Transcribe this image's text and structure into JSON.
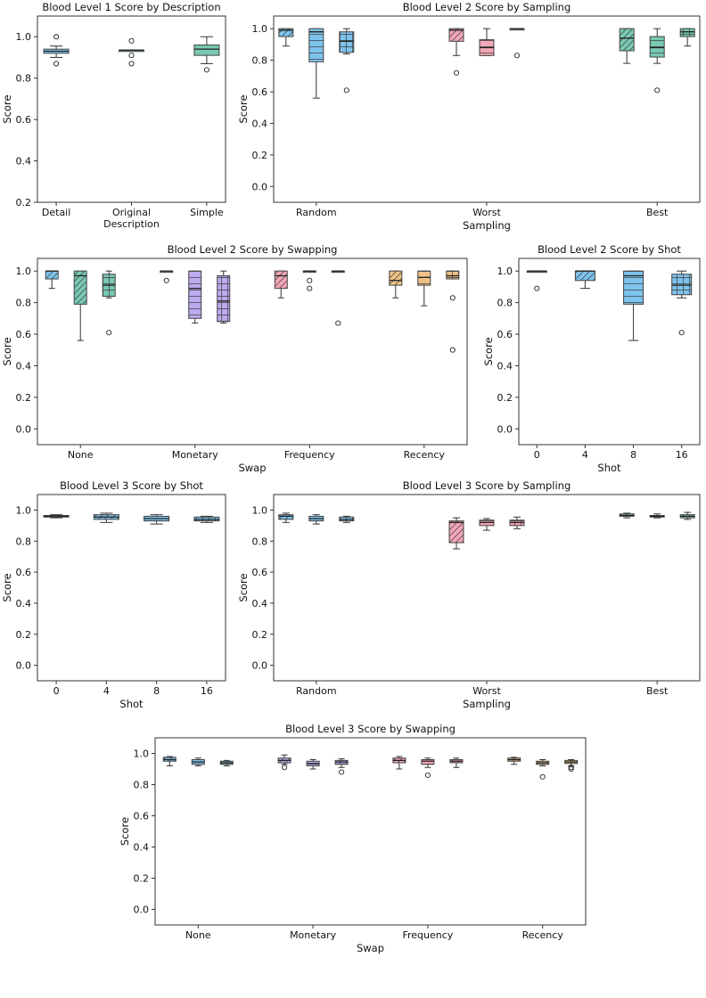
{
  "colors": {
    "blue": "#7ec3ec",
    "pink": "#f3a6b6",
    "teal": "#79c9b3",
    "purple": "#bca9ee",
    "orange": "#eec186",
    "median": "#222222",
    "frame": "#333333"
  },
  "chart_data": [
    {
      "id": "p1",
      "type": "box",
      "title": "Blood Level 1 Score by Description",
      "xlabel": "",
      "ylabel": "Score",
      "ylim": [
        0.2,
        1.1
      ],
      "yticks": [
        0.2,
        0.4,
        0.6,
        0.8,
        1.0
      ],
      "yticklabels": [
        "0.2",
        "0.4",
        "0.6",
        "0.8",
        "1.0"
      ],
      "groups": [
        {
          "label": "Detail",
          "boxes": [
            {
              "q1": 0.92,
              "median": 0.93,
              "q3": 0.94,
              "whislo": 0.9,
              "whishi": 0.955,
              "fliers": [
                0.87,
                1.0
              ],
              "color": "blue",
              "hatch": "none"
            }
          ]
        },
        {
          "label": "Original\nDescription",
          "boxes": [
            {
              "q1": 0.93,
              "median": 0.935,
              "q3": 0.935,
              "whislo": 0.93,
              "whishi": 0.935,
              "fliers": [
                0.98,
                0.91,
                0.87
              ],
              "color": "blue",
              "hatch": "none"
            }
          ]
        },
        {
          "label": "Simple",
          "boxes": [
            {
              "q1": 0.91,
              "median": 0.94,
              "q3": 0.96,
              "whislo": 0.87,
              "whishi": 1.0,
              "fliers": [
                0.84
              ],
              "color": "teal",
              "hatch": "none"
            }
          ]
        }
      ]
    },
    {
      "id": "p2",
      "type": "box",
      "title": "Blood Level 2 Score by Sampling",
      "xlabel": "Sampling",
      "ylabel": "Score",
      "ylim": [
        -0.1,
        1.08
      ],
      "yticks": [
        0.0,
        0.2,
        0.4,
        0.6,
        0.8,
        1.0
      ],
      "yticklabels": [
        "0.0",
        "0.2",
        "0.4",
        "0.6",
        "0.8",
        "1.0"
      ],
      "groups": [
        {
          "label": "Random",
          "boxes": [
            {
              "q1": 0.95,
              "median": 0.99,
              "q3": 1.0,
              "whislo": 0.89,
              "whishi": 1.0,
              "fliers": [],
              "color": "blue",
              "hatch": "diag"
            },
            {
              "q1": 0.79,
              "median": 0.98,
              "q3": 1.0,
              "whislo": 0.56,
              "whishi": 1.0,
              "fliers": [],
              "color": "blue",
              "hatch": "horiz"
            },
            {
              "q1": 0.85,
              "median": 0.92,
              "q3": 0.98,
              "whislo": 0.84,
              "whishi": 1.0,
              "fliers": [
                0.61
              ],
              "color": "blue",
              "hatch": "grid"
            }
          ]
        },
        {
          "label": "Worst",
          "boxes": [
            {
              "q1": 0.92,
              "median": 0.99,
              "q3": 1.0,
              "whislo": 0.83,
              "whishi": 1.0,
              "fliers": [
                0.72
              ],
              "color": "pink",
              "hatch": "diag"
            },
            {
              "q1": 0.83,
              "median": 0.88,
              "q3": 0.93,
              "whislo": 0.83,
              "whishi": 1.0,
              "fliers": [],
              "color": "pink",
              "hatch": "horiz"
            },
            {
              "q1": 1.0,
              "median": 1.0,
              "q3": 1.0,
              "whislo": 1.0,
              "whishi": 1.0,
              "fliers": [
                0.83
              ],
              "color": "pink",
              "hatch": "grid"
            }
          ]
        },
        {
          "label": "Best",
          "boxes": [
            {
              "q1": 0.86,
              "median": 0.94,
              "q3": 1.0,
              "whislo": 0.78,
              "whishi": 1.0,
              "fliers": [],
              "color": "teal",
              "hatch": "diag"
            },
            {
              "q1": 0.82,
              "median": 0.88,
              "q3": 0.95,
              "whislo": 0.78,
              "whishi": 1.0,
              "fliers": [
                0.61
              ],
              "color": "teal",
              "hatch": "horiz"
            },
            {
              "q1": 0.95,
              "median": 0.98,
              "q3": 1.0,
              "whislo": 0.89,
              "whishi": 1.0,
              "fliers": [],
              "color": "teal",
              "hatch": "grid"
            }
          ]
        }
      ]
    },
    {
      "id": "p3",
      "type": "box",
      "title": "Blood Level 2 Score by Swapping",
      "xlabel": "Swap",
      "ylabel": "Score",
      "ylim": [
        -0.1,
        1.08
      ],
      "yticks": [
        0.0,
        0.2,
        0.4,
        0.6,
        0.8,
        1.0
      ],
      "yticklabels": [
        "0.0",
        "0.2",
        "0.4",
        "0.6",
        "0.8",
        "1.0"
      ],
      "groups": [
        {
          "label": "None",
          "boxes": [
            {
              "q1": 0.95,
              "median": 1.0,
              "q3": 1.0,
              "whislo": 0.89,
              "whishi": 1.0,
              "fliers": [],
              "color": "blue",
              "hatch": "diag"
            },
            {
              "q1": 0.79,
              "median": 0.97,
              "q3": 1.0,
              "whislo": 0.56,
              "whishi": 1.0,
              "fliers": [],
              "color": "teal",
              "hatch": "diag"
            },
            {
              "q1": 0.84,
              "median": 0.91,
              "q3": 0.98,
              "whislo": 0.83,
              "whishi": 1.0,
              "fliers": [
                0.61
              ],
              "color": "teal",
              "hatch": "grid"
            }
          ]
        },
        {
          "label": "Monetary",
          "boxes": [
            {
              "q1": 1.0,
              "median": 1.0,
              "q3": 1.0,
              "whislo": 1.0,
              "whishi": 1.0,
              "fliers": [
                0.94
              ],
              "color": "purple",
              "hatch": "diag"
            },
            {
              "q1": 0.7,
              "median": 0.89,
              "q3": 1.0,
              "whislo": 0.67,
              "whishi": 1.0,
              "fliers": [],
              "color": "purple",
              "hatch": "horiz"
            },
            {
              "q1": 0.68,
              "median": 0.81,
              "q3": 0.97,
              "whislo": 0.67,
              "whishi": 1.0,
              "fliers": [],
              "color": "purple",
              "hatch": "grid"
            }
          ]
        },
        {
          "label": "Frequency",
          "boxes": [
            {
              "q1": 0.89,
              "median": 0.97,
              "q3": 1.0,
              "whislo": 0.83,
              "whishi": 1.0,
              "fliers": [],
              "color": "pink",
              "hatch": "diag"
            },
            {
              "q1": 1.0,
              "median": 1.0,
              "q3": 1.0,
              "whislo": 1.0,
              "whishi": 1.0,
              "fliers": [
                0.94,
                0.89
              ],
              "color": "pink",
              "hatch": "horiz"
            },
            {
              "q1": 1.0,
              "median": 1.0,
              "q3": 1.0,
              "whislo": 1.0,
              "whishi": 1.0,
              "fliers": [
                0.67
              ],
              "color": "pink",
              "hatch": "grid"
            }
          ]
        },
        {
          "label": "Recency",
          "boxes": [
            {
              "q1": 0.91,
              "median": 0.94,
              "q3": 1.0,
              "whislo": 0.83,
              "whishi": 1.0,
              "fliers": [],
              "color": "orange",
              "hatch": "diag"
            },
            {
              "q1": 0.91,
              "median": 0.96,
              "q3": 1.0,
              "whislo": 0.78,
              "whishi": 1.0,
              "fliers": [],
              "color": "orange",
              "hatch": "horiz"
            },
            {
              "q1": 0.95,
              "median": 0.97,
              "q3": 1.0,
              "whislo": 0.95,
              "whishi": 1.0,
              "fliers": [
                0.83,
                0.5
              ],
              "color": "orange",
              "hatch": "grid"
            }
          ]
        }
      ]
    },
    {
      "id": "p4",
      "type": "box",
      "title": "Blood Level 2 Score by Shot",
      "xlabel": "Shot",
      "ylabel": "Score",
      "ylim": [
        -0.1,
        1.08
      ],
      "yticks": [
        0.0,
        0.2,
        0.4,
        0.6,
        0.8,
        1.0
      ],
      "yticklabels": [
        "0.0",
        "0.2",
        "0.4",
        "0.6",
        "0.8",
        "1.0"
      ],
      "groups": [
        {
          "label": "0",
          "boxes": [
            {
              "q1": 1.0,
              "median": 1.0,
              "q3": 1.0,
              "whislo": 1.0,
              "whishi": 1.0,
              "fliers": [
                0.89
              ],
              "color": "blue",
              "hatch": "none"
            }
          ]
        },
        {
          "label": "4",
          "boxes": [
            {
              "q1": 0.94,
              "median": 1.0,
              "q3": 1.0,
              "whislo": 0.89,
              "whishi": 1.0,
              "fliers": [],
              "color": "blue",
              "hatch": "diag"
            }
          ]
        },
        {
          "label": "8",
          "boxes": [
            {
              "q1": 0.79,
              "median": 0.97,
              "q3": 1.0,
              "whislo": 0.56,
              "whishi": 1.0,
              "fliers": [],
              "color": "blue",
              "hatch": "horiz"
            }
          ]
        },
        {
          "label": "16",
          "boxes": [
            {
              "q1": 0.85,
              "median": 0.91,
              "q3": 0.98,
              "whislo": 0.83,
              "whishi": 1.0,
              "fliers": [
                0.61
              ],
              "color": "blue",
              "hatch": "grid"
            }
          ]
        }
      ]
    },
    {
      "id": "p5",
      "type": "box",
      "title": "Blood Level 3 Score by Shot",
      "xlabel": "Shot",
      "ylabel": "Score",
      "ylim": [
        -0.1,
        1.1
      ],
      "yticks": [
        0.0,
        0.2,
        0.4,
        0.6,
        0.8,
        1.0
      ],
      "yticklabels": [
        "0.0",
        "0.2",
        "0.4",
        "0.6",
        "0.8",
        "1.0"
      ],
      "groups": [
        {
          "label": "0",
          "boxes": [
            {
              "q1": 0.955,
              "median": 0.96,
              "q3": 0.965,
              "whislo": 0.95,
              "whishi": 0.97,
              "fliers": [],
              "color": "blue",
              "hatch": "none"
            }
          ]
        },
        {
          "label": "4",
          "boxes": [
            {
              "q1": 0.94,
              "median": 0.955,
              "q3": 0.97,
              "whislo": 0.92,
              "whishi": 0.98,
              "fliers": [],
              "color": "blue",
              "hatch": "diag"
            }
          ]
        },
        {
          "label": "8",
          "boxes": [
            {
              "q1": 0.93,
              "median": 0.945,
              "q3": 0.96,
              "whislo": 0.91,
              "whishi": 0.97,
              "fliers": [],
              "color": "blue",
              "hatch": "horiz"
            }
          ]
        },
        {
          "label": "16",
          "boxes": [
            {
              "q1": 0.93,
              "median": 0.94,
              "q3": 0.955,
              "whislo": 0.92,
              "whishi": 0.96,
              "fliers": [],
              "color": "blue",
              "hatch": "grid"
            }
          ]
        }
      ]
    },
    {
      "id": "p6",
      "type": "box",
      "title": "Blood Level 3 Score by Sampling",
      "xlabel": "Sampling",
      "ylabel": "Score",
      "ylim": [
        -0.1,
        1.1
      ],
      "yticks": [
        0.0,
        0.2,
        0.4,
        0.6,
        0.8,
        1.0
      ],
      "yticklabels": [
        "0.0",
        "0.2",
        "0.4",
        "0.6",
        "0.8",
        "1.0"
      ],
      "groups": [
        {
          "label": "Random",
          "boxes": [
            {
              "q1": 0.94,
              "median": 0.96,
              "q3": 0.97,
              "whislo": 0.92,
              "whishi": 0.98,
              "fliers": [],
              "color": "blue",
              "hatch": "diag"
            },
            {
              "q1": 0.93,
              "median": 0.945,
              "q3": 0.96,
              "whislo": 0.91,
              "whishi": 0.97,
              "fliers": [],
              "color": "blue",
              "hatch": "horiz"
            },
            {
              "q1": 0.93,
              "median": 0.94,
              "q3": 0.955,
              "whislo": 0.92,
              "whishi": 0.96,
              "fliers": [],
              "color": "blue",
              "hatch": "grid"
            }
          ]
        },
        {
          "label": "Worst",
          "boxes": [
            {
              "q1": 0.79,
              "median": 0.92,
              "q3": 0.93,
              "whislo": 0.75,
              "whishi": 0.95,
              "fliers": [],
              "color": "pink",
              "hatch": "diag"
            },
            {
              "q1": 0.9,
              "median": 0.92,
              "q3": 0.935,
              "whislo": 0.87,
              "whishi": 0.945,
              "fliers": [],
              "color": "pink",
              "hatch": "horiz"
            },
            {
              "q1": 0.9,
              "median": 0.92,
              "q3": 0.935,
              "whislo": 0.88,
              "whishi": 0.955,
              "fliers": [],
              "color": "pink",
              "hatch": "grid"
            }
          ]
        },
        {
          "label": "Best",
          "boxes": [
            {
              "q1": 0.96,
              "median": 0.965,
              "q3": 0.975,
              "whislo": 0.95,
              "whishi": 0.98,
              "fliers": [],
              "color": "teal",
              "hatch": "diag"
            },
            {
              "q1": 0.955,
              "median": 0.96,
              "q3": 0.965,
              "whislo": 0.95,
              "whishi": 0.975,
              "fliers": [],
              "color": "teal",
              "hatch": "horiz"
            },
            {
              "q1": 0.95,
              "median": 0.96,
              "q3": 0.97,
              "whislo": 0.94,
              "whishi": 0.985,
              "fliers": [],
              "color": "teal",
              "hatch": "grid"
            }
          ]
        }
      ]
    },
    {
      "id": "p7",
      "type": "box",
      "title": "Blood Level 3 Score by Swapping",
      "xlabel": "Swap",
      "ylabel": "Score",
      "ylim": [
        -0.1,
        1.1
      ],
      "yticks": [
        0.0,
        0.2,
        0.4,
        0.6,
        0.8,
        1.0
      ],
      "yticklabels": [
        "0.0",
        "0.2",
        "0.4",
        "0.6",
        "0.8",
        "1.0"
      ],
      "groups": [
        {
          "label": "None",
          "boxes": [
            {
              "q1": 0.95,
              "median": 0.96,
              "q3": 0.975,
              "whislo": 0.92,
              "whishi": 0.98,
              "fliers": [],
              "color": "blue",
              "hatch": "diag"
            },
            {
              "q1": 0.93,
              "median": 0.945,
              "q3": 0.96,
              "whislo": 0.92,
              "whishi": 0.97,
              "fliers": [],
              "color": "blue",
              "hatch": "horiz"
            },
            {
              "q1": 0.93,
              "median": 0.94,
              "q3": 0.95,
              "whislo": 0.92,
              "whishi": 0.955,
              "fliers": [],
              "color": "blue",
              "hatch": "grid"
            }
          ]
        },
        {
          "label": "Monetary",
          "boxes": [
            {
              "q1": 0.94,
              "median": 0.955,
              "q3": 0.97,
              "whislo": 0.93,
              "whishi": 0.99,
              "fliers": [
                0.91
              ],
              "color": "purple",
              "hatch": "diag"
            },
            {
              "q1": 0.92,
              "median": 0.935,
              "q3": 0.95,
              "whislo": 0.9,
              "whishi": 0.96,
              "fliers": [],
              "color": "purple",
              "hatch": "horiz"
            },
            {
              "q1": 0.93,
              "median": 0.945,
              "q3": 0.955,
              "whislo": 0.91,
              "whishi": 0.965,
              "fliers": [
                0.88
              ],
              "color": "purple",
              "hatch": "grid"
            }
          ]
        },
        {
          "label": "Frequency",
          "boxes": [
            {
              "q1": 0.94,
              "median": 0.955,
              "q3": 0.97,
              "whislo": 0.9,
              "whishi": 0.98,
              "fliers": [],
              "color": "pink",
              "hatch": "diag"
            },
            {
              "q1": 0.93,
              "median": 0.95,
              "q3": 0.96,
              "whislo": 0.91,
              "whishi": 0.97,
              "fliers": [
                0.86
              ],
              "color": "pink",
              "hatch": "horiz"
            },
            {
              "q1": 0.94,
              "median": 0.95,
              "q3": 0.96,
              "whislo": 0.91,
              "whishi": 0.97,
              "fliers": [],
              "color": "pink",
              "hatch": "grid"
            }
          ]
        },
        {
          "label": "Recency",
          "boxes": [
            {
              "q1": 0.95,
              "median": 0.96,
              "q3": 0.97,
              "whislo": 0.93,
              "whishi": 0.975,
              "fliers": [],
              "color": "orange",
              "hatch": "diag"
            },
            {
              "q1": 0.93,
              "median": 0.94,
              "q3": 0.95,
              "whislo": 0.92,
              "whishi": 0.96,
              "fliers": [
                0.85
              ],
              "color": "orange",
              "hatch": "horiz"
            },
            {
              "q1": 0.935,
              "median": 0.945,
              "q3": 0.955,
              "whislo": 0.92,
              "whishi": 0.96,
              "fliers": [
                0.91,
                0.9
              ],
              "color": "orange",
              "hatch": "grid"
            }
          ]
        }
      ]
    }
  ]
}
